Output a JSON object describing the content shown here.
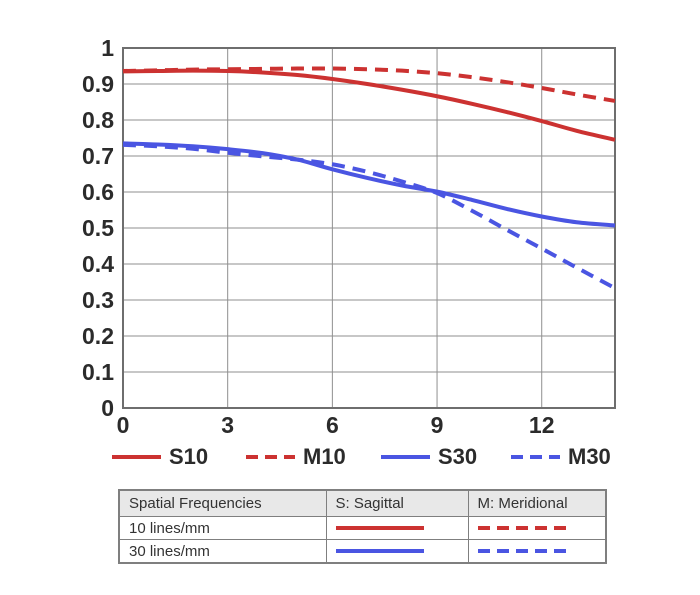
{
  "colors": {
    "red": "#cc3231",
    "blue": "#4a55e2",
    "grid": "#8f8f8f",
    "axis_box": "#6e6e6e",
    "tick_text": "#2b2b2b",
    "table_border": "#7f7f7f",
    "table_header_bg": "#e8e8e8",
    "table_text": "#333333"
  },
  "chart_data": {
    "type": "line",
    "title": "",
    "xlabel": "",
    "ylabel": "",
    "xlim": [
      0,
      14.1
    ],
    "ylim": [
      0,
      1
    ],
    "x_ticks": [
      0,
      3,
      6,
      9,
      12
    ],
    "x_tick_labels": [
      "0",
      "3",
      "6",
      "9",
      "12"
    ],
    "y_ticks": [
      0,
      0.1,
      0.2,
      0.3,
      0.4,
      0.5,
      0.6,
      0.7,
      0.8,
      0.9,
      1
    ],
    "y_tick_labels": [
      "0",
      "0.1",
      "0.2",
      "0.3",
      "0.4",
      "0.5",
      "0.6",
      "0.7",
      "0.8",
      "0.9",
      "1"
    ],
    "grid": true,
    "legend_position": "bottom",
    "x": [
      0,
      1,
      2,
      3,
      4,
      5,
      6,
      7,
      8,
      9,
      10,
      11,
      12,
      13,
      14.1
    ],
    "series": [
      {
        "name": "S10",
        "color": "#cc3231",
        "style": "solid",
        "values": [
          0.935,
          0.936,
          0.937,
          0.936,
          0.932,
          0.925,
          0.914,
          0.9,
          0.884,
          0.866,
          0.845,
          0.822,
          0.797,
          0.77,
          0.745
        ]
      },
      {
        "name": "M10",
        "color": "#cc3231",
        "style": "dashed",
        "values": [
          0.936,
          0.938,
          0.94,
          0.941,
          0.942,
          0.943,
          0.943,
          0.941,
          0.937,
          0.93,
          0.919,
          0.905,
          0.889,
          0.871,
          0.853
        ]
      },
      {
        "name": "S30",
        "color": "#4a55e2",
        "style": "solid",
        "values": [
          0.735,
          0.732,
          0.727,
          0.719,
          0.708,
          0.69,
          0.663,
          0.639,
          0.618,
          0.601,
          0.578,
          0.553,
          0.532,
          0.516,
          0.507
        ]
      },
      {
        "name": "M30",
        "color": "#4a55e2",
        "style": "dashed",
        "values": [
          0.731,
          0.727,
          0.72,
          0.709,
          0.699,
          0.69,
          0.677,
          0.656,
          0.629,
          0.597,
          0.548,
          0.495,
          0.443,
          0.39,
          0.333
        ]
      }
    ]
  },
  "table": {
    "headers": [
      "Spatial Frequencies",
      "S: Sagittal",
      "M: Meridional"
    ],
    "rows": [
      {
        "frequency": "10 lines/mm",
        "color": "#cc3231"
      },
      {
        "frequency": "30 lines/mm",
        "color": "#4a55e2"
      }
    ]
  }
}
